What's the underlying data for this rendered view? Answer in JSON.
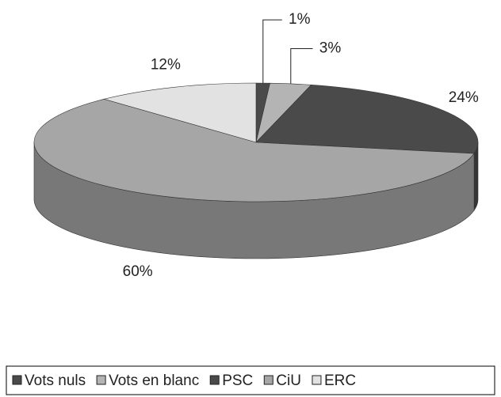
{
  "chart_data": {
    "type": "pie",
    "categories": [
      "Vots nuls",
      "Vots en blanc",
      "PSC",
      "CiU",
      "ERC"
    ],
    "values": [
      1,
      3,
      24,
      60,
      12
    ],
    "value_labels": [
      "1%",
      "3%",
      "24%",
      "60%",
      "12%"
    ],
    "colors": [
      "#4a4a4a",
      "#b4b4b4",
      "#4a4a4a",
      "#a6a6a6",
      "#e2e2e2"
    ],
    "legend": "bottom"
  }
}
